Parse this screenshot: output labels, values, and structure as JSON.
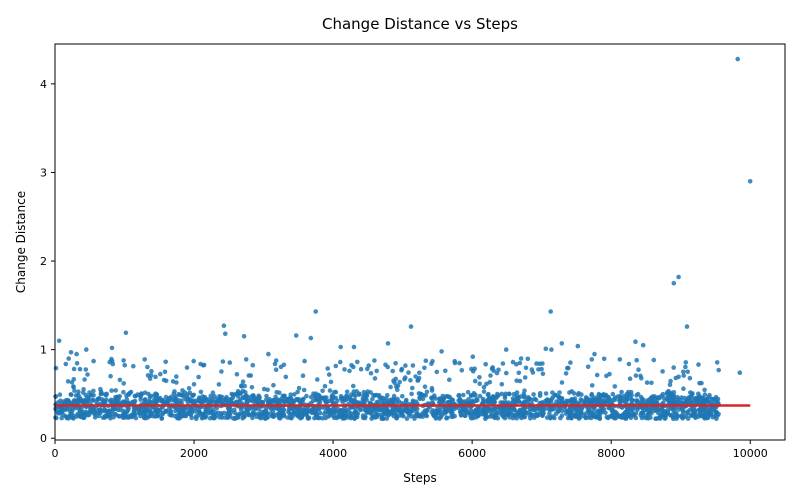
{
  "chart_data": {
    "type": "scatter",
    "title": "Change Distance vs Steps",
    "xlabel": "Steps",
    "ylabel": "Change Distance",
    "xlim": [
      0,
      10500
    ],
    "ylim": [
      -0.02,
      4.45
    ],
    "xticks": [
      0,
      2000,
      4000,
      6000,
      8000,
      10000
    ],
    "yticks": [
      0,
      1,
      2,
      3,
      4
    ],
    "grid": false,
    "point_color": "#1f77b4",
    "line_color": "#d62728",
    "series": [
      {
        "values_note": "",
        "outliers": [
          [
            60,
            1.1
          ],
          [
            230,
            0.97
          ],
          [
            310,
            0.95
          ],
          [
            450,
            1.0
          ],
          [
            820,
            1.02
          ],
          [
            1020,
            1.19
          ],
          [
            1290,
            0.89
          ],
          [
            2430,
            1.27
          ],
          [
            2450,
            1.18
          ],
          [
            2720,
            1.15
          ],
          [
            3070,
            0.95
          ],
          [
            3470,
            1.16
          ],
          [
            3680,
            1.13
          ],
          [
            3750,
            1.43
          ],
          [
            4110,
            1.03
          ],
          [
            4300,
            1.03
          ],
          [
            4790,
            1.07
          ],
          [
            5120,
            1.26
          ],
          [
            5560,
            0.98
          ],
          [
            6010,
            0.92
          ],
          [
            6490,
            1.0
          ],
          [
            7060,
            1.01
          ],
          [
            7130,
            1.43
          ],
          [
            7140,
            1.0
          ],
          [
            7290,
            1.07
          ],
          [
            7520,
            1.04
          ],
          [
            7760,
            0.95
          ],
          [
            8350,
            1.09
          ],
          [
            8460,
            1.05
          ],
          [
            8900,
            1.75
          ],
          [
            8970,
            1.82
          ],
          [
            9090,
            1.26
          ],
          [
            9820,
            4.28
          ],
          [
            10000,
            2.9
          ],
          [
            9850,
            0.74
          ]
        ]
      },
      {
        "name": "",
        "type": "line",
        "x": [
          0,
          10000
        ],
        "y": [
          0.37,
          0.37
        ]
      }
    ],
    "bulk_distribution": {
      "x_range": [
        0,
        9550
      ],
      "y_typical": [
        0.22,
        0.55
      ],
      "y_spread_max": 0.9,
      "count": 2600
    }
  }
}
